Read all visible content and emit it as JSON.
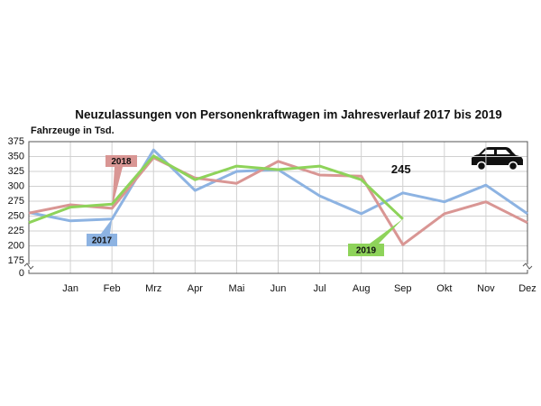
{
  "chart_data": {
    "type": "line",
    "title": "Neuzulassungen von Personenkraftwagen im Jahresverlauf 2017 bis 2019",
    "y_label": "Fahrzeuge in Tsd.",
    "categories": [
      null,
      "Jan",
      "Feb",
      "Mrz",
      "Apr",
      "Mai",
      "Jun",
      "Jul",
      "Aug",
      "Sep",
      "Okt",
      "Nov",
      "Dez"
    ],
    "series": [
      {
        "name": "2017",
        "color": "#8db3e2",
        "values": [
          256,
          242,
          245,
          361,
          293,
          325,
          328,
          284,
          254,
          289,
          274,
          302,
          254
        ]
      },
      {
        "name": "2018",
        "color": "#d99694",
        "values": [
          255,
          269,
          263,
          348,
          314,
          305,
          342,
          319,
          317,
          202,
          254,
          274,
          239
        ]
      },
      {
        "name": "2019",
        "color": "#8ed35a",
        "values": [
          239,
          265,
          270,
          351,
          311,
          334,
          328,
          334,
          311,
          245,
          null,
          null,
          null
        ],
        "value_labels": [
          null,
          null,
          null,
          null,
          null,
          null,
          null,
          null,
          null,
          "245",
          null,
          null,
          null
        ]
      }
    ],
    "ylim": [
      0,
      375
    ],
    "axis_break": [
      0,
      175
    ],
    "yticks": [
      0,
      175,
      200,
      225,
      250,
      275,
      300,
      325,
      350,
      375
    ],
    "grid": true
  }
}
